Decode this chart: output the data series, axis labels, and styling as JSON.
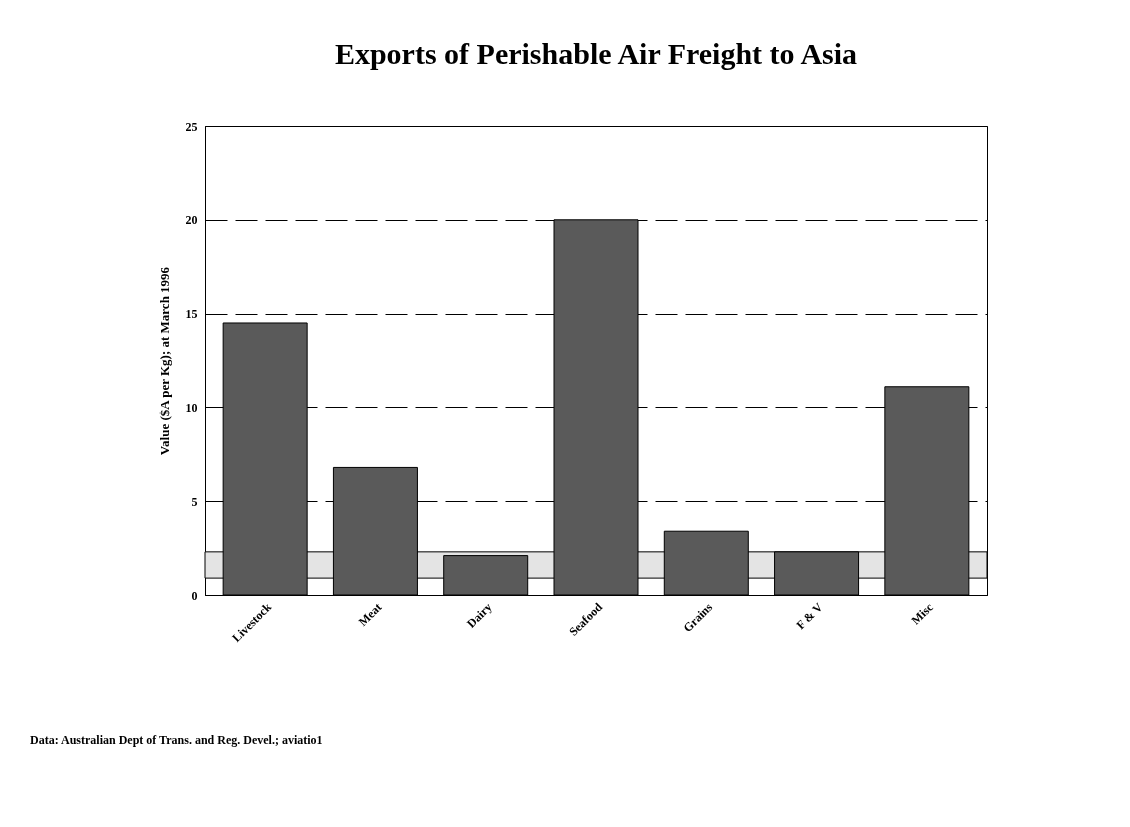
{
  "chart_data": {
    "type": "bar",
    "title": "Exports of Perishable Air Freight to Asia",
    "ylabel": "Value ($A per Kg); at March 1996",
    "categories": [
      "Livestock",
      "Meat",
      "Dairy",
      "Seafood",
      "Grains",
      "F & V",
      "Misc"
    ],
    "values": [
      14.5,
      6.8,
      2.1,
      20.0,
      3.4,
      2.3,
      11.1
    ],
    "color": "#5a5a5a",
    "ylim": [
      0,
      25
    ],
    "yticks": [
      0,
      5,
      10,
      15,
      20,
      25
    ],
    "grid": "y",
    "bands": [
      {
        "axis": "y",
        "from": 0.9,
        "to": 2.3,
        "color": "#e4e4e4"
      }
    ],
    "annotations": [
      "Data: Australian Dept of Trans. and Reg. Devel.; aviatio1"
    ]
  }
}
